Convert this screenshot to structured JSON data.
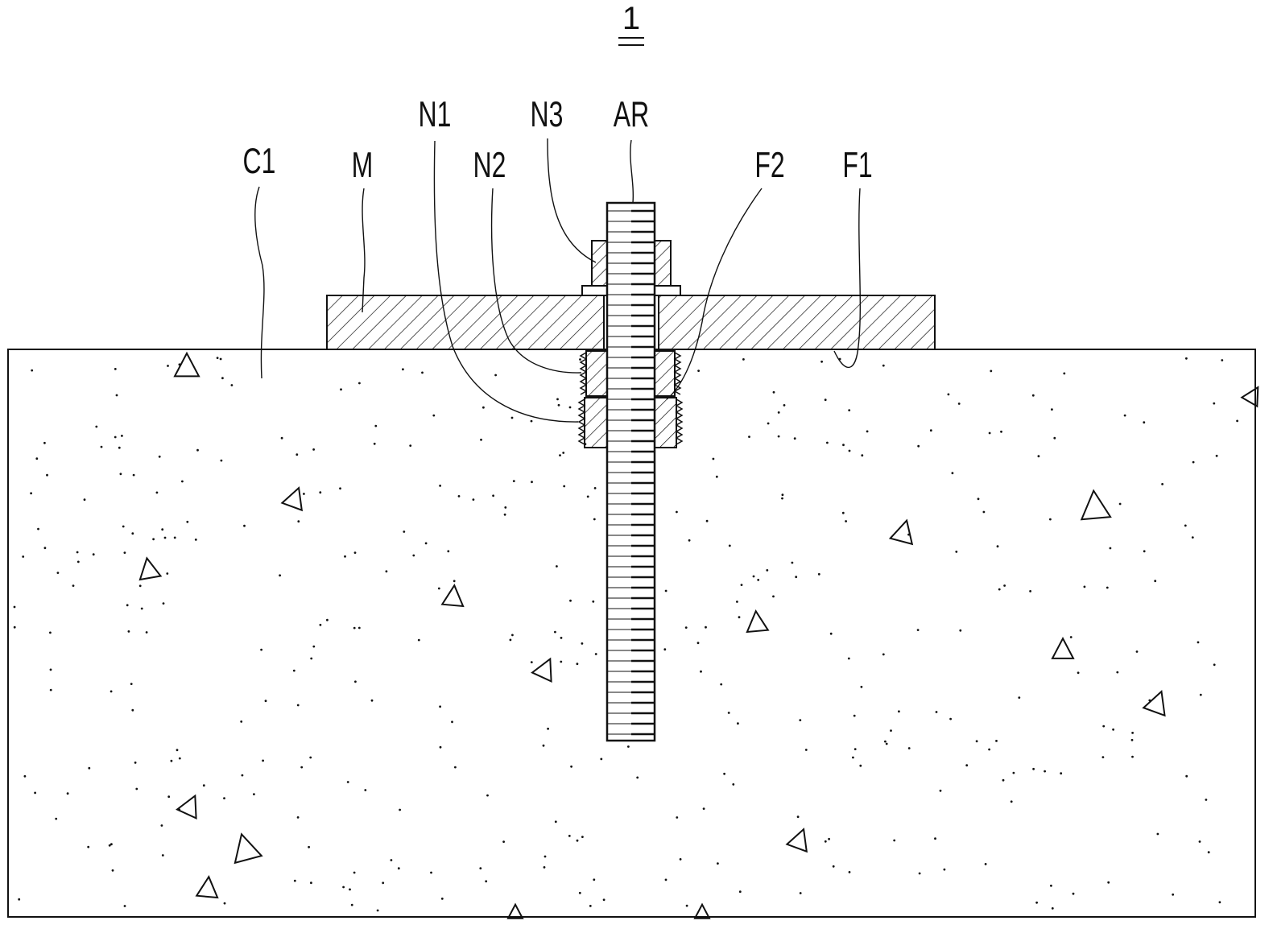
{
  "figure": {
    "number": "1"
  },
  "labels": {
    "c1": "C1",
    "m": "M",
    "n1": "N1",
    "n2": "N2",
    "n3": "N3",
    "ar": "AR",
    "f2": "F2",
    "f1": "F1"
  },
  "colors": {
    "line": "#111111",
    "background": "#ffffff"
  }
}
